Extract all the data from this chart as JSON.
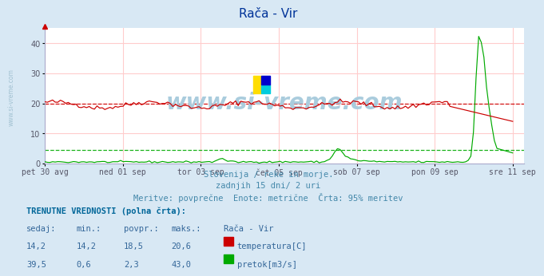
{
  "title": "Rača - Vir",
  "bg_color": "#d8e8f4",
  "plot_bg_color": "#ffffff",
  "grid_v_color": "#ffcccc",
  "grid_h_color": "#ffcccc",
  "x_tick_labels": [
    "pet 30 avg",
    "ned 01 sep",
    "tor 03 sep",
    "čet 05 sep",
    "sob 07 sep",
    "pon 09 sep",
    "sre 11 sep"
  ],
  "ylim": [
    0,
    45
  ],
  "yticks": [
    0,
    10,
    20,
    30,
    40
  ],
  "temp_color": "#cc0000",
  "flow_color": "#00aa00",
  "temp_avg": 20.0,
  "flow_avg": 4.5,
  "watermark": "www.si-vreme.com",
  "watermark_color": "#aaccdd",
  "left_text": "www.si-vreme.com",
  "subtitle1": "Slovenija / reke in morje.",
  "subtitle2": "zadnjih 15 dni/ 2 uri",
  "subtitle3": "Meritve: povprečne  Enote: metrične  Črta: 95% meritev",
  "table_header": "TRENUTNE VREDNOSTI (polna črta):",
  "col_headers": [
    "sedaj:",
    "min.:",
    "povpr.:",
    "maks.:",
    "Rača - Vir"
  ],
  "row1_vals": [
    "14,2",
    "14,2",
    "18,5",
    "20,6"
  ],
  "row1_label": "temperatura[C]",
  "row1_color": "#cc0000",
  "row2_vals": [
    "39,5",
    "0,6",
    "2,3",
    "43,0"
  ],
  "row2_label": "pretok[m3/s]",
  "row2_color": "#00aa00",
  "text_color": "#336699",
  "header_color": "#006699",
  "subtitle_color": "#4488aa"
}
